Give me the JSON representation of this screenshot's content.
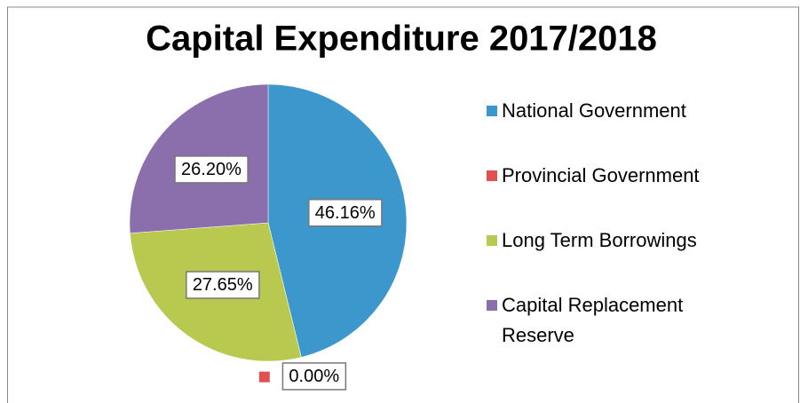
{
  "chart_data": {
    "type": "pie",
    "title": "Capital Expenditure 2017/2018",
    "categories": [
      "National Government",
      "Provincial Government",
      "Long Term Borrowings",
      "Capital Replacement Reserve"
    ],
    "values": [
      46.16,
      0.0,
      27.65,
      26.2
    ],
    "value_labels": [
      "46.16%",
      "0.00%",
      "27.65%",
      "26.20%"
    ],
    "colors": [
      "#3c97cc",
      "#e05252",
      "#b9c94f",
      "#8a6fac"
    ],
    "legend": "right"
  }
}
